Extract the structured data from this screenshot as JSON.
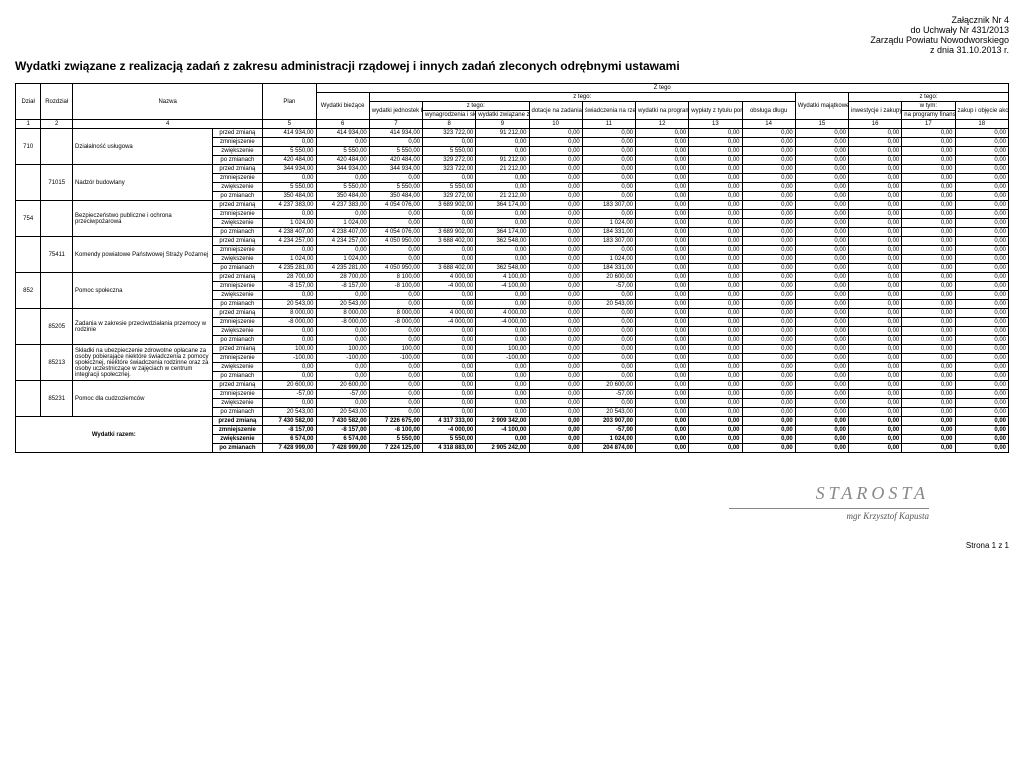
{
  "attachment": {
    "line1": "Załącznik Nr 4",
    "line2": "do Uchwały Nr 431/2013",
    "line3": "Zarządu Powiatu Nowodworskiego",
    "line4": "z dnia 31.10.2013 r."
  },
  "title": "Wydatki związane z realizacją zadań z zakresu administracji rządowej i innych zadań zleconych odrębnymi ustawami",
  "cols": {
    "dzial": "Dział",
    "rozdzial": "Rozdział",
    "nazwa": "Nazwa",
    "plan": "Plan",
    "ztego_top": "Z tego",
    "wydatki_biezace": "Wydatki bieżące",
    "ztego2": "z tego:",
    "wydatki_jedn": "wydatki jednostek budżetowych,",
    "ztego3": "z tego:",
    "wynagrodzenia": "wynagrodzenia i składki od nich naliczane",
    "wydatki_zwiazane": "wydatki związane z realizacją ich statutowych zadań;",
    "dotacje": "dotacje na zadania bieżące",
    "swiadczenia": "świadczenia na rzecz osób fizycznych;",
    "wydatki_programy": "wydatki na programy finansowane z udziałem środków, o których mowa w art. 5 ust. 1 pkt 2 i 3",
    "wyplaty": "wypłaty z tytułu poręczeń i gwarancji",
    "obsluga": "obsługa długu",
    "wydatki_maj": "Wydatki majątkowe",
    "ztego4": "z tego:",
    "wtym": "w tym:",
    "inwestycje": "inwestycje i zakupy inwestycyjne",
    "na_programy": "na programy finansowane z udziałem środków, o których mowa w art. 5 ust. 1 pkt 2 i 3,",
    "zakup": "zakup i objęcie akcji i udziałów oraz wniesienie wkładów do spółek prawa handlowego."
  },
  "colnums": [
    "1",
    "2",
    "4",
    "5",
    "6",
    "7",
    "8",
    "9",
    "10",
    "11",
    "12",
    "13",
    "14",
    "15",
    "16",
    "17",
    "18"
  ],
  "status_labels": {
    "przed": "przed zmianą",
    "zmniej": "zmniejszenie",
    "zwiek": "zwiększenie",
    "po": "po zmianach"
  },
  "sections": [
    {
      "dzial": "710",
      "rozdzial": "",
      "nazwa": "Działalność usługowa",
      "rows": [
        [
          "przed",
          "414 934,00",
          "414 934,00",
          "414 934,00",
          "323 722,00",
          "91 212,00",
          "0,00",
          "0,00",
          "0,00",
          "0,00",
          "0,00",
          "0,00",
          "0,00",
          "0,00",
          "0,00"
        ],
        [
          "zmniej",
          "0,00",
          "0,00",
          "0,00",
          "0,00",
          "0,00",
          "0,00",
          "0,00",
          "0,00",
          "0,00",
          "0,00",
          "0,00",
          "0,00",
          "0,00",
          "0,00"
        ],
        [
          "zwiek",
          "5 550,00",
          "5 550,00",
          "5 550,00",
          "5 550,00",
          "0,00",
          "0,00",
          "0,00",
          "0,00",
          "0,00",
          "0,00",
          "0,00",
          "0,00",
          "0,00",
          "0,00"
        ],
        [
          "po",
          "420 484,00",
          "420 484,00",
          "420 484,00",
          "329 272,00",
          "91 212,00",
          "0,00",
          "0,00",
          "0,00",
          "0,00",
          "0,00",
          "0,00",
          "0,00",
          "0,00",
          "0,00"
        ]
      ]
    },
    {
      "dzial": "",
      "rozdzial": "71015",
      "nazwa": "Nadzór budowlany",
      "rows": [
        [
          "przed",
          "344 934,00",
          "344 934,00",
          "344 934,00",
          "323 722,00",
          "21 212,00",
          "0,00",
          "0,00",
          "0,00",
          "0,00",
          "0,00",
          "0,00",
          "0,00",
          "0,00",
          "0,00"
        ],
        [
          "zmniej",
          "0,00",
          "0,00",
          "0,00",
          "0,00",
          "0,00",
          "0,00",
          "0,00",
          "0,00",
          "0,00",
          "0,00",
          "0,00",
          "0,00",
          "0,00",
          "0,00"
        ],
        [
          "zwiek",
          "5 550,00",
          "5 550,00",
          "5 550,00",
          "5 550,00",
          "0,00",
          "0,00",
          "0,00",
          "0,00",
          "0,00",
          "0,00",
          "0,00",
          "0,00",
          "0,00",
          "0,00"
        ],
        [
          "po",
          "350 484,00",
          "350 484,00",
          "350 484,00",
          "329 272,00",
          "21 212,00",
          "0,00",
          "0,00",
          "0,00",
          "0,00",
          "0,00",
          "0,00",
          "0,00",
          "0,00",
          "0,00"
        ]
      ]
    },
    {
      "dzial": "754",
      "rozdzial": "",
      "nazwa": "Bezpieczeństwo publiczne i ochrona przeciwpożarowa",
      "rows": [
        [
          "przed",
          "4 237 383,00",
          "4 237 383,00",
          "4 054 076,00",
          "3 689 902,00",
          "364 174,00",
          "0,00",
          "183 307,00",
          "0,00",
          "0,00",
          "0,00",
          "0,00",
          "0,00",
          "0,00",
          "0,00"
        ],
        [
          "zmniej",
          "0,00",
          "0,00",
          "0,00",
          "0,00",
          "0,00",
          "0,00",
          "0,00",
          "0,00",
          "0,00",
          "0,00",
          "0,00",
          "0,00",
          "0,00",
          "0,00"
        ],
        [
          "zwiek",
          "1 024,00",
          "1 024,00",
          "0,00",
          "0,00",
          "0,00",
          "0,00",
          "1 024,00",
          "0,00",
          "0,00",
          "0,00",
          "0,00",
          "0,00",
          "0,00",
          "0,00"
        ],
        [
          "po",
          "4 238 407,00",
          "4 238 407,00",
          "4 054 076,00",
          "3 689 902,00",
          "364 174,00",
          "0,00",
          "184 331,00",
          "0,00",
          "0,00",
          "0,00",
          "0,00",
          "0,00",
          "0,00",
          "0,00"
        ]
      ]
    },
    {
      "dzial": "",
      "rozdzial": "75411",
      "nazwa": "Komendy powiatowe Państwowej Straży Pożarnej",
      "rows": [
        [
          "przed",
          "4 234 257,00",
          "4 234 257,00",
          "4 050 950,00",
          "3 688 402,00",
          "362 548,00",
          "0,00",
          "183 307,00",
          "0,00",
          "0,00",
          "0,00",
          "0,00",
          "0,00",
          "0,00",
          "0,00"
        ],
        [
          "zmniej",
          "0,00",
          "0,00",
          "0,00",
          "0,00",
          "0,00",
          "0,00",
          "0,00",
          "0,00",
          "0,00",
          "0,00",
          "0,00",
          "0,00",
          "0,00",
          "0,00"
        ],
        [
          "zwiek",
          "1 024,00",
          "1 024,00",
          "0,00",
          "0,00",
          "0,00",
          "0,00",
          "1 024,00",
          "0,00",
          "0,00",
          "0,00",
          "0,00",
          "0,00",
          "0,00",
          "0,00"
        ],
        [
          "po",
          "4 235 281,00",
          "4 235 281,00",
          "4 050 950,00",
          "3 688 402,00",
          "362 548,00",
          "0,00",
          "184 331,00",
          "0,00",
          "0,00",
          "0,00",
          "0,00",
          "0,00",
          "0,00",
          "0,00"
        ]
      ]
    },
    {
      "dzial": "852",
      "rozdzial": "",
      "nazwa": "Pomoc społeczna",
      "rows": [
        [
          "przed",
          "28 700,00",
          "28 700,00",
          "8 100,00",
          "4 000,00",
          "4 100,00",
          "0,00",
          "20 600,00",
          "0,00",
          "0,00",
          "0,00",
          "0,00",
          "0,00",
          "0,00",
          "0,00"
        ],
        [
          "zmniej",
          "-8 157,00",
          "-8 157,00",
          "-8 100,00",
          "-4 000,00",
          "-4 100,00",
          "0,00",
          "-57,00",
          "0,00",
          "0,00",
          "0,00",
          "0,00",
          "0,00",
          "0,00",
          "0,00"
        ],
        [
          "zwiek",
          "0,00",
          "0,00",
          "0,00",
          "0,00",
          "0,00",
          "0,00",
          "0,00",
          "0,00",
          "0,00",
          "0,00",
          "0,00",
          "0,00",
          "0,00",
          "0,00"
        ],
        [
          "po",
          "20 543,00",
          "20 543,00",
          "0,00",
          "0,00",
          "0,00",
          "0,00",
          "20 543,00",
          "0,00",
          "0,00",
          "0,00",
          "0,00",
          "0,00",
          "0,00",
          "0,00"
        ]
      ]
    },
    {
      "dzial": "",
      "rozdzial": "85205",
      "nazwa": "Zadania w zakresie przeciwdziałania przemocy w rodzinie",
      "rows": [
        [
          "przed",
          "8 000,00",
          "8 000,00",
          "8 000,00",
          "4 000,00",
          "4 000,00",
          "0,00",
          "0,00",
          "0,00",
          "0,00",
          "0,00",
          "0,00",
          "0,00",
          "0,00",
          "0,00"
        ],
        [
          "zmniej",
          "-8 000,00",
          "-8 000,00",
          "-8 000,00",
          "-4 000,00",
          "-4 000,00",
          "0,00",
          "0,00",
          "0,00",
          "0,00",
          "0,00",
          "0,00",
          "0,00",
          "0,00",
          "0,00"
        ],
        [
          "zwiek",
          "0,00",
          "0,00",
          "0,00",
          "0,00",
          "0,00",
          "0,00",
          "0,00",
          "0,00",
          "0,00",
          "0,00",
          "0,00",
          "0,00",
          "0,00",
          "0,00"
        ],
        [
          "po",
          "0,00",
          "0,00",
          "0,00",
          "0,00",
          "0,00",
          "0,00",
          "0,00",
          "0,00",
          "0,00",
          "0,00",
          "0,00",
          "0,00",
          "0,00",
          "0,00"
        ]
      ]
    },
    {
      "dzial": "",
      "rozdzial": "85213",
      "nazwa": "Składki na ubezpieczenie zdrowotne opłacane za osoby pobierające niektóre świadczenia z pomocy społecznej, niektóre świadczenia rodzinne oraz za osoby uczestniczące w zajęciach w centrum integracji społecznej.",
      "rows": [
        [
          "przed",
          "100,00",
          "100,00",
          "100,00",
          "0,00",
          "100,00",
          "0,00",
          "0,00",
          "0,00",
          "0,00",
          "0,00",
          "0,00",
          "0,00",
          "0,00",
          "0,00"
        ],
        [
          "zmniej",
          "-100,00",
          "-100,00",
          "-100,00",
          "0,00",
          "-100,00",
          "0,00",
          "0,00",
          "0,00",
          "0,00",
          "0,00",
          "0,00",
          "0,00",
          "0,00",
          "0,00"
        ],
        [
          "zwiek",
          "0,00",
          "0,00",
          "0,00",
          "0,00",
          "0,00",
          "0,00",
          "0,00",
          "0,00",
          "0,00",
          "0,00",
          "0,00",
          "0,00",
          "0,00",
          "0,00"
        ],
        [
          "po",
          "0,00",
          "0,00",
          "0,00",
          "0,00",
          "0,00",
          "0,00",
          "0,00",
          "0,00",
          "0,00",
          "0,00",
          "0,00",
          "0,00",
          "0,00",
          "0,00"
        ]
      ]
    },
    {
      "dzial": "",
      "rozdzial": "85231",
      "nazwa": "Pomoc dla cudzoziemców",
      "rows": [
        [
          "przed",
          "20 600,00",
          "20 600,00",
          "0,00",
          "0,00",
          "0,00",
          "0,00",
          "20 600,00",
          "0,00",
          "0,00",
          "0,00",
          "0,00",
          "0,00",
          "0,00",
          "0,00"
        ],
        [
          "zmniej",
          "-57,00",
          "-57,00",
          "0,00",
          "0,00",
          "0,00",
          "0,00",
          "-57,00",
          "0,00",
          "0,00",
          "0,00",
          "0,00",
          "0,00",
          "0,00",
          "0,00"
        ],
        [
          "zwiek",
          "0,00",
          "0,00",
          "0,00",
          "0,00",
          "0,00",
          "0,00",
          "0,00",
          "0,00",
          "0,00",
          "0,00",
          "0,00",
          "0,00",
          "0,00",
          "0,00"
        ],
        [
          "po",
          "20 543,00",
          "20 543,00",
          "0,00",
          "0,00",
          "0,00",
          "0,00",
          "20 543,00",
          "0,00",
          "0,00",
          "0,00",
          "0,00",
          "0,00",
          "0,00",
          "0,00"
        ]
      ]
    }
  ],
  "totals": {
    "label": "Wydatki razem:",
    "rows": [
      [
        "przed",
        "7 430 582,00",
        "7 430 582,00",
        "7 226 675,00",
        "4 317 333,00",
        "2 909 342,00",
        "0,00",
        "203 907,00",
        "0,00",
        "0,00",
        "0,00",
        "0,00",
        "0,00",
        "0,00",
        "0,00"
      ],
      [
        "zmniej",
        "-8 157,00",
        "-8 157,00",
        "-8 100,00",
        "-4 000,00",
        "-4 100,00",
        "0,00",
        "-57,00",
        "0,00",
        "0,00",
        "0,00",
        "0,00",
        "0,00",
        "0,00",
        "0,00"
      ],
      [
        "zwiek",
        "6 574,00",
        "6 574,00",
        "5 550,00",
        "5 550,00",
        "0,00",
        "0,00",
        "1 024,00",
        "0,00",
        "0,00",
        "0,00",
        "0,00",
        "0,00",
        "0,00",
        "0,00"
      ],
      [
        "po",
        "7 428 999,00",
        "7 428 999,00",
        "7 224 125,00",
        "4 318 883,00",
        "2 905 242,00",
        "0,00",
        "204 874,00",
        "0,00",
        "0,00",
        "0,00",
        "0,00",
        "0,00",
        "0,00",
        "0,00"
      ]
    ]
  },
  "signature": {
    "title": "STAROSTA",
    "name": "mgr Krzysztof Kapusta"
  },
  "pagenum": "Strona 1 z 1"
}
